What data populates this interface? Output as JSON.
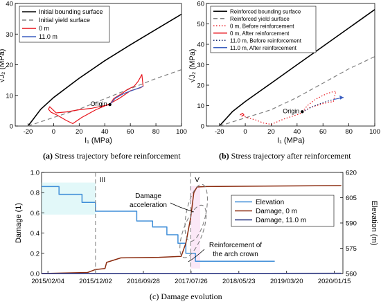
{
  "chart_data": [
    {
      "type": "line",
      "panel": "a",
      "xlabel": "I₁ (MPa)",
      "ylabel": "√J₂ (MPa)",
      "xlim": [
        -30,
        100
      ],
      "ylim": [
        0,
        40
      ],
      "x_ticks": [
        "-20",
        "0",
        "20",
        "40",
        "60",
        "80",
        "100"
      ],
      "y_ticks": [
        "0",
        "10",
        "20",
        "30",
        "40"
      ],
      "legend": "top-left",
      "series": [
        {
          "name": "Initial bounding surface",
          "style": "solid",
          "color": "#000000",
          "x": [
            -20,
            -10,
            0,
            20,
            40,
            60,
            80,
            100
          ],
          "y": [
            0,
            5.5,
            9.3,
            15.6,
            21.3,
            26.5,
            31.5,
            36.5
          ]
        },
        {
          "name": "Initial yield surface",
          "style": "dashed",
          "color": "#808080",
          "x": [
            -20,
            0,
            20,
            40,
            60,
            80,
            100
          ],
          "y": [
            0,
            2.8,
            5.5,
            8.9,
            12.2,
            15.5,
            18.4
          ]
        },
        {
          "name": "0 m",
          "style": "solid",
          "color": "#e8141c",
          "x": [
            44,
            47,
            53,
            58,
            63,
            66,
            68,
            69,
            70,
            68,
            60,
            52,
            43,
            33,
            22,
            15,
            10,
            3,
            -2,
            -4,
            -3,
            2,
            10,
            20,
            30,
            38,
            44
          ],
          "y": [
            7,
            9,
            10.5,
            12,
            13,
            14.5,
            16,
            16.8,
            13,
            12.5,
            11.5,
            9.2,
            7.1,
            5.3,
            2.8,
            0.8,
            1.8,
            3.5,
            4.5,
            5.5,
            6.3,
            4.3,
            4.6,
            5.3,
            5.8,
            6.5,
            7
          ]
        },
        {
          "name": "11.0 m",
          "style": "solid",
          "color": "#3b5fc0",
          "x": [
            44,
            48,
            52,
            56,
            60,
            64,
            68,
            70
          ],
          "y": [
            7,
            9,
            10,
            10.8,
            11.4,
            12,
            12.6,
            13
          ]
        }
      ],
      "annotations": [
        {
          "text": "Origin",
          "x": 44,
          "y": 7
        }
      ]
    },
    {
      "type": "line",
      "panel": "b",
      "xlabel": "I₁ (MPa)",
      "ylabel": "√J₂ (MPa)",
      "xlim": [
        -30,
        100
      ],
      "ylim": [
        0,
        60
      ],
      "x_ticks": [
        "-20",
        "0",
        "20",
        "40",
        "60",
        "80",
        "100"
      ],
      "y_ticks": [
        "0",
        "10",
        "20",
        "30",
        "40",
        "50",
        "60"
      ],
      "legend": "top-left",
      "series": [
        {
          "name": "Reinforced bounding surface",
          "style": "solid",
          "color": "#000000",
          "x": [
            -20,
            -10,
            0,
            20,
            40,
            60,
            80,
            100
          ],
          "y": [
            0,
            7,
            12,
            21,
            30,
            39,
            48,
            57
          ]
        },
        {
          "name": "Reinforced yield surface",
          "style": "dashed",
          "color": "#808080",
          "x": [
            -20,
            0,
            20,
            40,
            60,
            80,
            100
          ],
          "y": [
            0,
            4,
            8,
            14,
            21,
            28,
            34
          ]
        },
        {
          "name": "0 m, Before reinforcement",
          "style": "dotted",
          "color": "#e8141c",
          "x": [
            44,
            48,
            54,
            60,
            66,
            70,
            68,
            60,
            50,
            42,
            30,
            20,
            14,
            8,
            2,
            -2,
            -4
          ],
          "y": [
            7,
            10,
            13,
            15,
            16.5,
            17,
            12,
            11,
            9,
            6,
            3.5,
            0.8,
            1.5,
            3,
            4,
            5,
            5.5
          ]
        },
        {
          "name": "0 m, After reinforcement",
          "style": "solid",
          "color": "#e8141c",
          "x": [
            -4,
            -2,
            -1,
            -3
          ],
          "y": [
            5.5,
            6.2,
            5.4,
            4.8
          ]
        },
        {
          "name": "11.0 m, Before reinforcement",
          "style": "dotted",
          "color": "#1a2b6e",
          "x": [
            44,
            52,
            60,
            68
          ],
          "y": [
            7,
            9.5,
            11.5,
            13
          ]
        },
        {
          "name": "11.0 m, After reinforcement",
          "style": "solid",
          "color": "#3b5fc0",
          "x": [
            68,
            72,
            76
          ],
          "y": [
            13,
            13.5,
            14
          ]
        }
      ],
      "annotations": [
        {
          "text": "Origin",
          "x": 44,
          "y": 7
        }
      ]
    },
    {
      "type": "line",
      "panel": "c",
      "ylabel": "Damage (1)",
      "y2label": "Elevation (m)",
      "ylim": [
        0,
        1.0
      ],
      "y2lim": [
        560,
        620
      ],
      "y_ticks": [
        "0.0",
        "0.2",
        "0.4",
        "0.6",
        "0.8",
        "1.0"
      ],
      "y2_ticks": [
        "560",
        "575",
        "590",
        "605",
        "620"
      ],
      "x_ticks": [
        "2015/02/04",
        "2015/12/02",
        "2016/09/28",
        "2017/07/26",
        "2018/05/23",
        "2019/03/20",
        "2020/01/15"
      ],
      "x_range_days": [
        -40,
        1860
      ],
      "legend": "right",
      "phases": [
        "III",
        "V"
      ],
      "phase_lines_days": [
        300,
        900
      ],
      "series": [
        {
          "name": "Elevation",
          "axis": "right",
          "color": "#3f8ed8",
          "shape": "step",
          "x_days": [
            -40,
            70,
            70,
            215,
            215,
            300,
            300,
            560,
            560,
            660,
            660,
            750,
            750,
            820,
            820,
            870,
            870,
            930,
            930,
            1430
          ],
          "y": [
            611.6,
            611.6,
            607,
            607,
            602.2,
            602.2,
            597,
            597,
            591.2,
            591.2,
            587.6,
            587.6,
            583,
            583,
            578,
            578,
            572,
            572,
            567.3,
            567.3
          ]
        },
        {
          "name": "Damage, 0 m",
          "axis": "left",
          "color": "#8b2c10",
          "x_days": [
            -40,
            250,
            300,
            360,
            370,
            460,
            700,
            840,
            870,
            900,
            920,
            940,
            1000,
            1850
          ],
          "y": [
            0.0,
            0.01,
            0.04,
            0.05,
            0.11,
            0.155,
            0.16,
            0.17,
            0.3,
            0.55,
            0.8,
            0.856,
            0.86,
            0.87
          ]
        },
        {
          "name": "Damage, 11.0 m",
          "axis": "left",
          "color": "#1f2a7a",
          "x_days": [
            -40,
            1850
          ],
          "y": [
            0.0,
            0.003
          ]
        }
      ],
      "annotations": [
        {
          "text": "Damage acceleration"
        },
        {
          "text": "Reinforcement of the arch crown"
        }
      ]
    }
  ],
  "captions": {
    "a_label": "(a)",
    "a_text": " Stress trajectory before reinforcement",
    "b_label": "(b)",
    "b_text": " Stress trajectory after reinforcement",
    "c_text": "(c) Damage evolution"
  },
  "labels": {
    "a_xlabel": "I₁ (MPa)",
    "a_ylabel": "√J₂ (MPa)",
    "b_xlabel": "I₁ (MPa)",
    "b_ylabel": "√J₂ (MPa)",
    "c_ylabel": "Damage (1)",
    "c_y2label": "Elevation (m)",
    "origin": "Origin",
    "phase_iii": "III",
    "phase_v": "V",
    "damage_acc_1": "Damage",
    "damage_acc_2": "acceleration",
    "reinf_1": "Reinforcement of",
    "reinf_2": "the arch crown"
  }
}
